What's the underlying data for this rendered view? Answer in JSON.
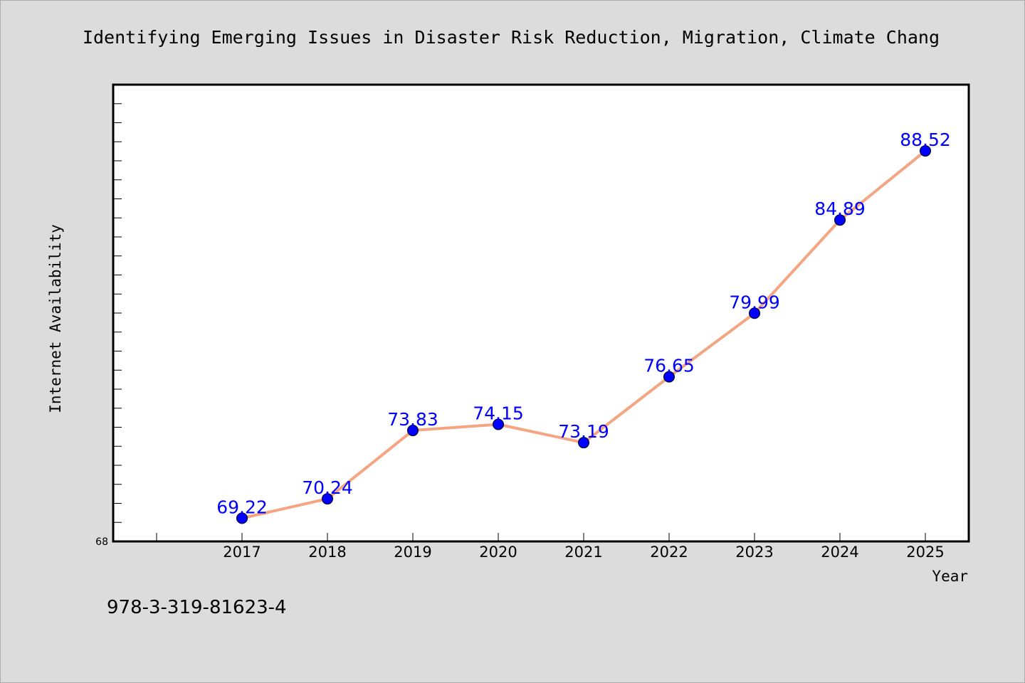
{
  "chart_data": {
    "type": "line",
    "title": "Identifying Emerging Issues in Disaster Risk Reduction, Migration, Climate Chang",
    "xlabel": "Year",
    "ylabel": "Internet Availability",
    "x": [
      "2017",
      "2018",
      "2019",
      "2020",
      "2021",
      "2022",
      "2023",
      "2024",
      "2025"
    ],
    "series": [
      {
        "values": [
          69.22,
          70.24,
          73.83,
          74.15,
          73.19,
          76.65,
          79.99,
          84.89,
          88.52
        ],
        "labels": [
          "69.22",
          "70.24",
          "73.83",
          "74.15",
          "73.19",
          "76.65",
          "79.99",
          "84.89",
          "88.52"
        ],
        "line_color": "#f4a582",
        "marker_color": "#0000ff"
      }
    ],
    "ylim": [
      68,
      92
    ],
    "y_tick_labels": [
      "68"
    ],
    "grid": false,
    "legend": "none"
  },
  "footer": {
    "isbn": "978-3-319-81623-4"
  }
}
